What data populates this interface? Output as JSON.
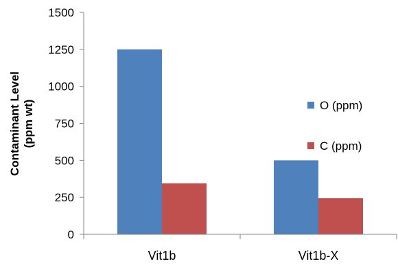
{
  "chart_data": {
    "type": "bar",
    "categories": [
      "Vit1b",
      "Vit1b-X"
    ],
    "series": [
      {
        "name": "O (ppm)",
        "values": [
          1250,
          500
        ],
        "color": "#4F81BD"
      },
      {
        "name": "C (ppm)",
        "values": [
          345,
          245
        ],
        "color": "#C0504D"
      }
    ],
    "ylabel": [
      "Contaminant Level",
      "(ppm wt)"
    ],
    "ylim": [
      0,
      1500
    ],
    "yticks": [
      0,
      250,
      500,
      750,
      1000,
      1250,
      1500
    ],
    "ytick_labels": [
      "0",
      "250",
      "500",
      "750",
      "1000",
      "1250",
      "1500"
    ],
    "grid": false,
    "legend_position": "right"
  }
}
